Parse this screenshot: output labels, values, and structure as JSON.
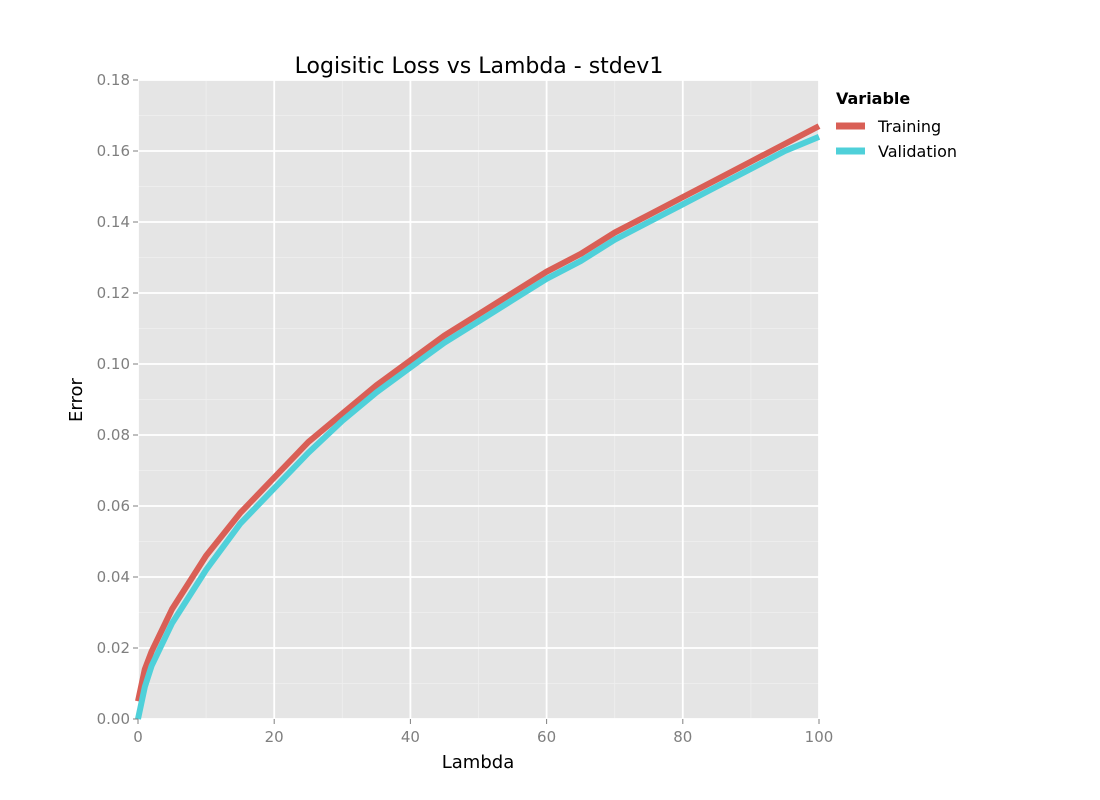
{
  "chart_data": {
    "type": "line",
    "title": "Logisitic Loss vs Lambda - stdev1",
    "xlabel": "Lambda",
    "ylabel": "Error",
    "xlim": [
      0,
      100
    ],
    "ylim": [
      0,
      0.18
    ],
    "xticks": [
      0,
      20,
      40,
      60,
      80,
      100
    ],
    "yticks": [
      0.0,
      0.02,
      0.04,
      0.06,
      0.08,
      0.1,
      0.12,
      0.14,
      0.16,
      0.18
    ],
    "xtick_labels": [
      "0",
      "20",
      "40",
      "60",
      "80",
      "100"
    ],
    "ytick_labels": [
      "0.00",
      "0.02",
      "0.04",
      "0.06",
      "0.08",
      "0.10",
      "0.12",
      "0.14",
      "0.16",
      "0.18"
    ],
    "grid": true,
    "legend_title": "Variable",
    "legend_position": "right",
    "x": [
      0,
      1,
      2,
      5,
      10,
      15,
      20,
      25,
      30,
      35,
      40,
      45,
      50,
      55,
      60,
      65,
      70,
      75,
      80,
      85,
      90,
      95,
      100
    ],
    "series": [
      {
        "name": "Training",
        "color": "#d95f56",
        "values": [
          0.005,
          0.014,
          0.019,
          0.031,
          0.046,
          0.058,
          0.068,
          0.078,
          0.086,
          0.094,
          0.101,
          0.108,
          0.114,
          0.12,
          0.126,
          0.131,
          0.137,
          0.142,
          0.147,
          0.152,
          0.157,
          0.162,
          0.167
        ]
      },
      {
        "name": "Validation",
        "color": "#4fd0d9",
        "values": [
          0.0,
          0.009,
          0.015,
          0.027,
          0.042,
          0.055,
          0.065,
          0.075,
          0.084,
          0.092,
          0.099,
          0.106,
          0.112,
          0.118,
          0.124,
          0.129,
          0.135,
          0.14,
          0.145,
          0.15,
          0.155,
          0.16,
          0.164
        ]
      }
    ]
  }
}
